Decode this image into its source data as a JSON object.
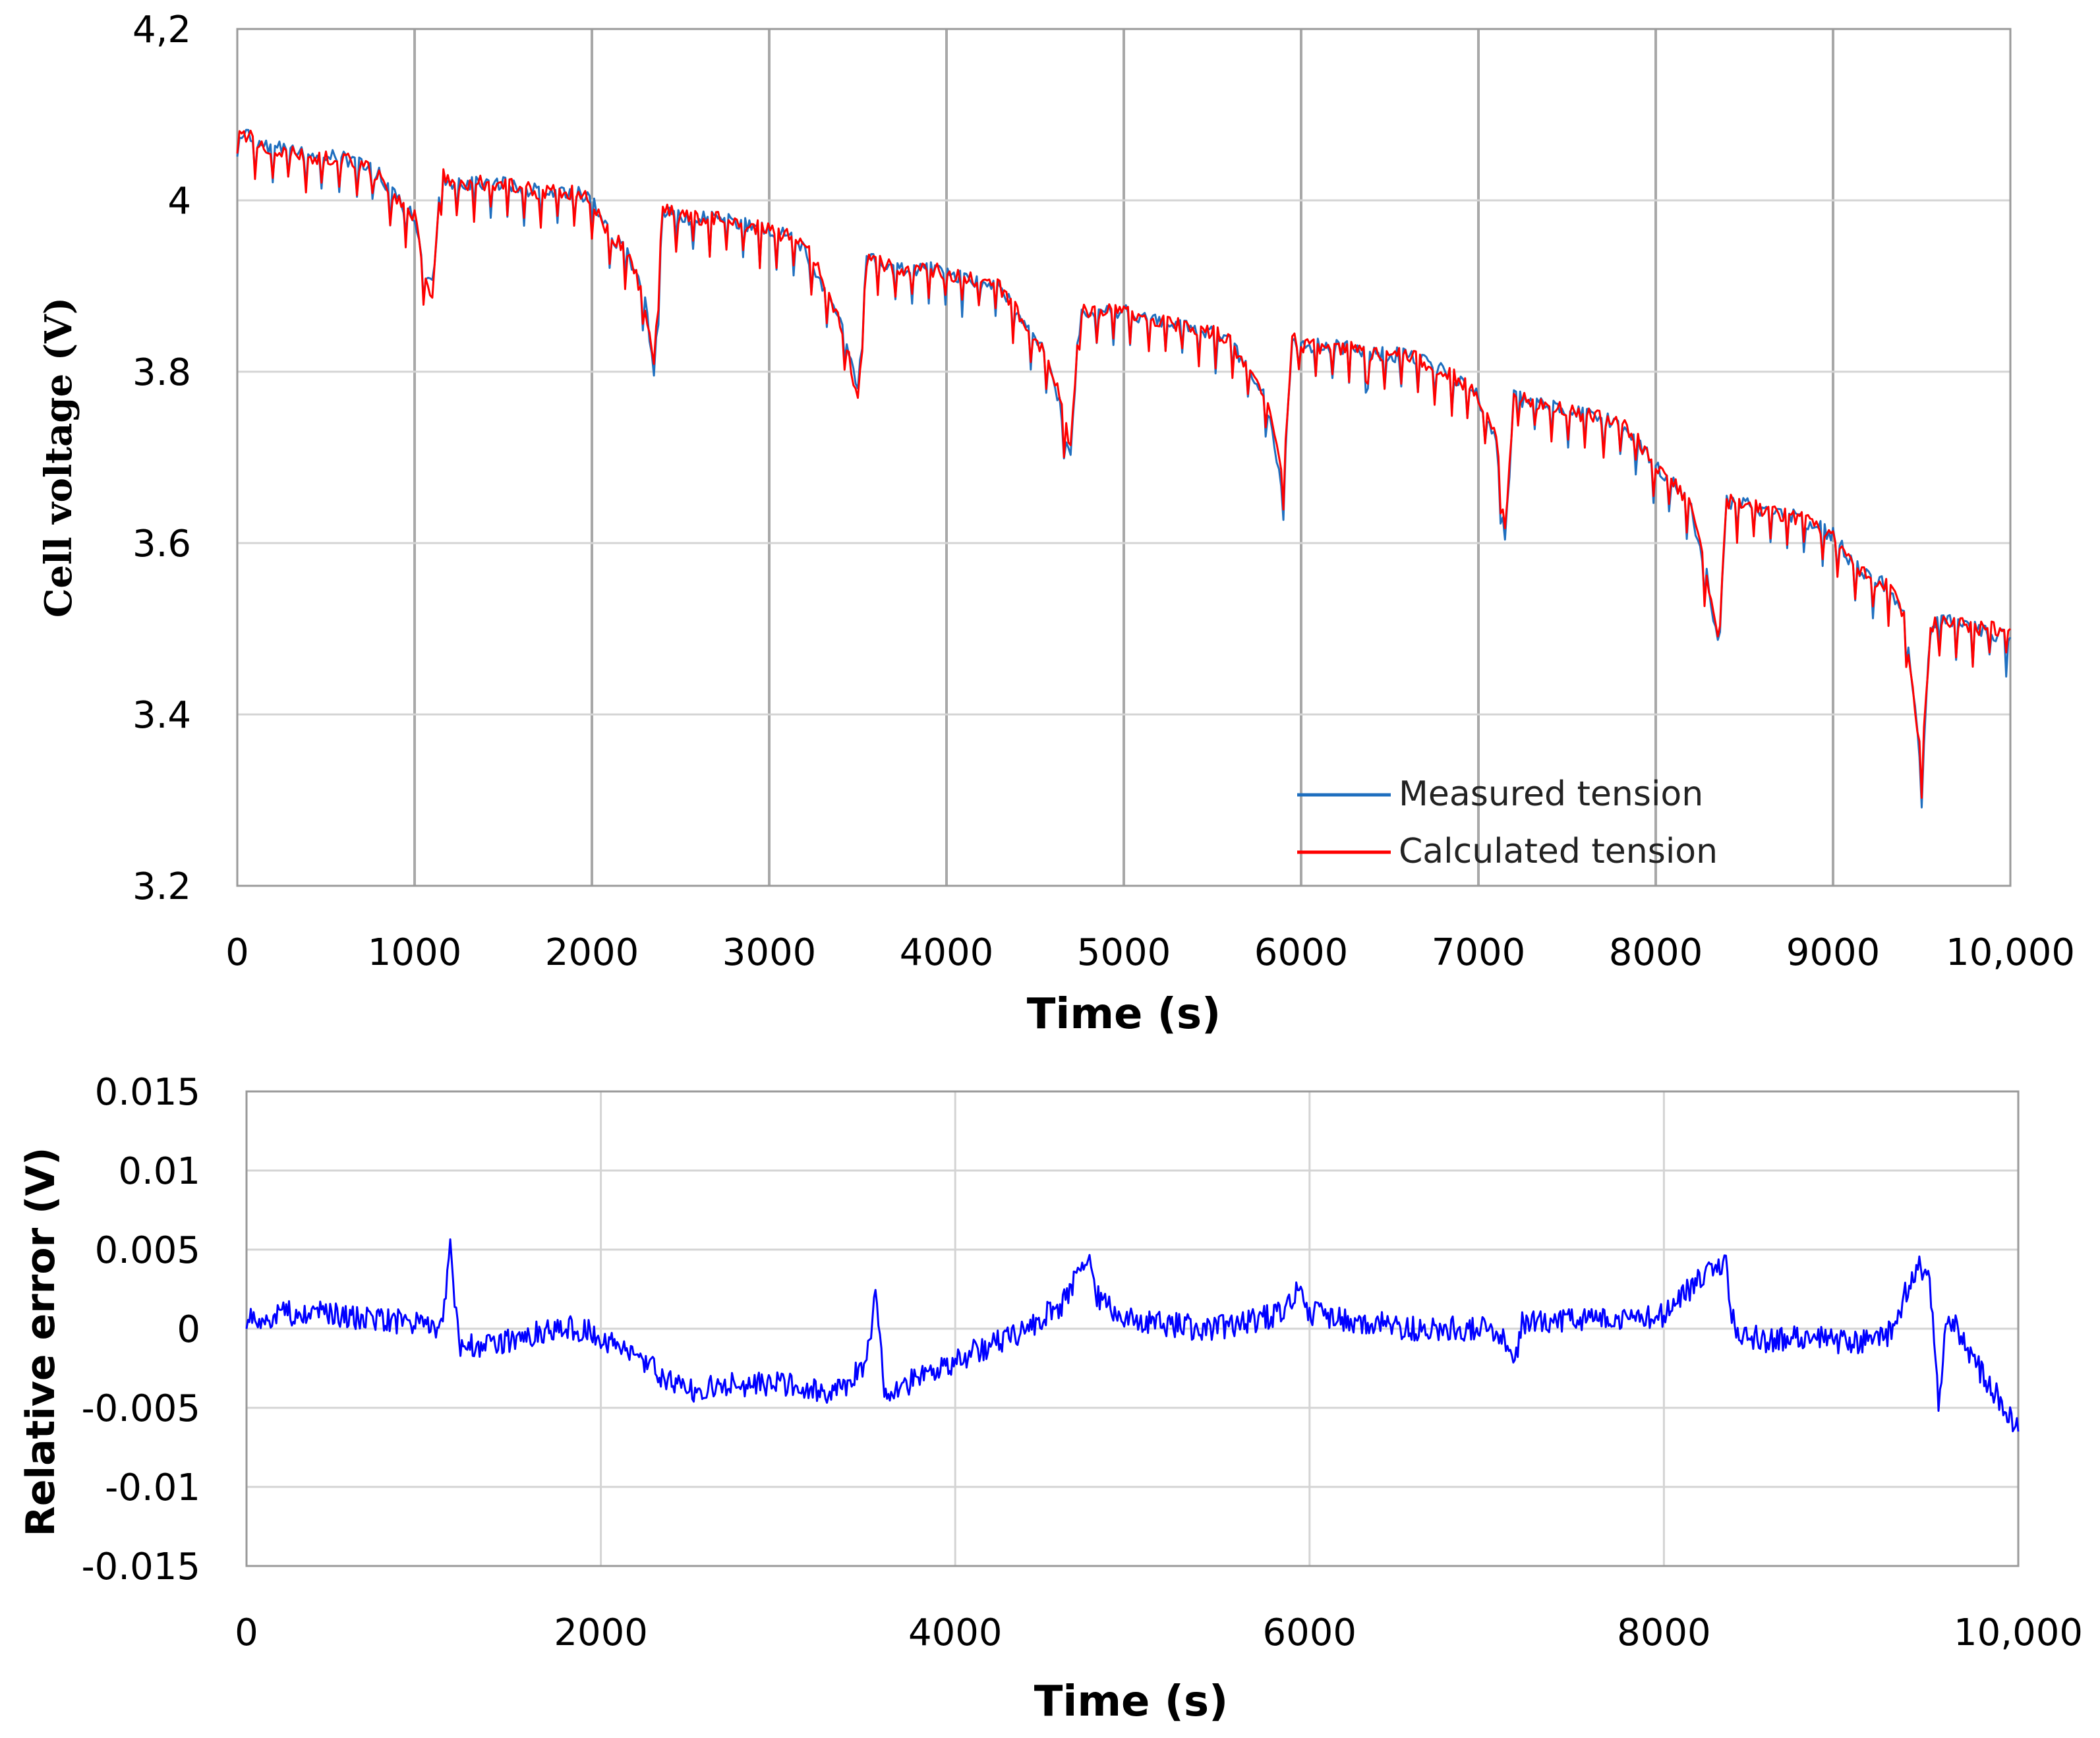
{
  "chart_data": [
    {
      "type": "line",
      "xlabel": "Time (s)",
      "ylabel": "Cell voltage  (V)",
      "xlim": [
        0,
        10000
      ],
      "ylim": [
        3.2,
        4.2
      ],
      "x_ticks": [
        0,
        1000,
        2000,
        3000,
        4000,
        5000,
        6000,
        7000,
        8000,
        9000,
        10000
      ],
      "x_tick_labels": [
        "0",
        "1000",
        "2000",
        "3000",
        "4000",
        "5000",
        "6000",
        "7000",
        "8000",
        "9000",
        "10,000"
      ],
      "y_ticks": [
        3.2,
        3.4,
        3.6,
        3.8,
        4.0,
        4.2
      ],
      "y_tick_labels": [
        "3.2",
        "3.4",
        "3.6",
        "3.8",
        "4",
        "4,2"
      ],
      "grid": true,
      "legend_position": "bottom-right",
      "series": [
        {
          "name": "Measured tension",
          "color": "#1f6fbf",
          "x": [
            0,
            100,
            200,
            300,
            400,
            500,
            600,
            700,
            800,
            900,
            1000,
            1050,
            1100,
            1150,
            1200,
            1300,
            1500,
            1700,
            1900,
            2000,
            2100,
            2200,
            2300,
            2350,
            2400,
            2500,
            2700,
            2900,
            3100,
            3200,
            3300,
            3400,
            3500,
            3550,
            3600,
            3700,
            3900,
            4100,
            4300,
            4400,
            4500,
            4600,
            4700,
            4750,
            4800,
            5000,
            5200,
            5400,
            5600,
            5700,
            5800,
            5900,
            5950,
            6000,
            6200,
            6400,
            6600,
            6800,
            6900,
            7000,
            7100,
            7150,
            7200,
            7400,
            7600,
            7800,
            7900,
            8000,
            8100,
            8200,
            8300,
            8350,
            8400,
            8600,
            8800,
            9000,
            9100,
            9200,
            9300,
            9400,
            9450,
            9500,
            9550,
            9600,
            9800,
            10000
          ],
          "y": [
            4.08,
            4.07,
            4.06,
            4.06,
            4.05,
            4.05,
            4.05,
            4.04,
            4.03,
            4.0,
            3.98,
            3.92,
            3.9,
            4.03,
            4.02,
            4.02,
            4.02,
            4.01,
            4.01,
            4.0,
            3.96,
            3.94,
            3.88,
            3.8,
            3.99,
            3.98,
            3.98,
            3.97,
            3.96,
            3.94,
            3.9,
            3.86,
            3.78,
            3.93,
            3.93,
            3.92,
            3.92,
            3.91,
            3.9,
            3.87,
            3.84,
            3.8,
            3.7,
            3.87,
            3.87,
            3.87,
            3.86,
            3.85,
            3.84,
            3.8,
            3.77,
            3.66,
            3.84,
            3.83,
            3.83,
            3.82,
            3.82,
            3.8,
            3.79,
            3.77,
            3.72,
            3.6,
            3.77,
            3.76,
            3.75,
            3.74,
            3.72,
            3.69,
            3.67,
            3.64,
            3.55,
            3.48,
            3.65,
            3.64,
            3.63,
            3.61,
            3.58,
            3.56,
            3.55,
            3.52,
            3.43,
            3.33,
            3.5,
            3.51,
            3.5,
            3.49
          ]
        },
        {
          "name": "Calculated tension",
          "color": "#ff0000",
          "x": [
            0,
            100,
            200,
            300,
            400,
            500,
            600,
            700,
            800,
            900,
            1000,
            1050,
            1100,
            1150,
            1200,
            1300,
            1500,
            1700,
            1900,
            2000,
            2100,
            2200,
            2300,
            2350,
            2400,
            2500,
            2700,
            2900,
            3100,
            3200,
            3300,
            3400,
            3500,
            3550,
            3600,
            3700,
            3900,
            4100,
            4300,
            4400,
            4500,
            4600,
            4700,
            4750,
            4800,
            5000,
            5200,
            5400,
            5600,
            5700,
            5800,
            5900,
            5950,
            6000,
            6200,
            6400,
            6600,
            6800,
            6900,
            7000,
            7100,
            7150,
            7200,
            7400,
            7600,
            7800,
            7900,
            8000,
            8100,
            8200,
            8300,
            8350,
            8400,
            8600,
            8800,
            9000,
            9100,
            9200,
            9300,
            9400,
            9450,
            9500,
            9550,
            9600,
            9800,
            10000
          ],
          "y": [
            4.08,
            4.07,
            4.06,
            4.06,
            4.05,
            4.05,
            4.05,
            4.04,
            4.03,
            4.0,
            3.98,
            3.92,
            3.89,
            4.03,
            4.02,
            4.02,
            4.02,
            4.01,
            4.01,
            4.0,
            3.96,
            3.94,
            3.88,
            3.81,
            3.99,
            3.98,
            3.98,
            3.97,
            3.96,
            3.95,
            3.91,
            3.86,
            3.77,
            3.93,
            3.93,
            3.92,
            3.92,
            3.91,
            3.9,
            3.87,
            3.84,
            3.8,
            3.71,
            3.87,
            3.87,
            3.87,
            3.86,
            3.85,
            3.84,
            3.8,
            3.77,
            3.67,
            3.84,
            3.83,
            3.83,
            3.82,
            3.82,
            3.8,
            3.79,
            3.77,
            3.72,
            3.61,
            3.77,
            3.76,
            3.75,
            3.74,
            3.72,
            3.69,
            3.67,
            3.64,
            3.55,
            3.49,
            3.65,
            3.64,
            3.63,
            3.61,
            3.58,
            3.56,
            3.55,
            3.52,
            3.43,
            3.34,
            3.5,
            3.51,
            3.5,
            3.5
          ]
        }
      ]
    },
    {
      "type": "line",
      "xlabel": "Time (s)",
      "ylabel": "Relative error (V)",
      "xlim": [
        0,
        10000
      ],
      "ylim": [
        -0.015,
        0.015
      ],
      "x_ticks": [
        0,
        2000,
        4000,
        6000,
        8000,
        10000
      ],
      "x_tick_labels": [
        "0",
        "2000",
        "4000",
        "6000",
        "8000",
        "10,000"
      ],
      "y_ticks": [
        -0.015,
        -0.01,
        -0.005,
        0,
        0.005,
        0.01,
        0.015
      ],
      "y_tick_labels": [
        "-0.015",
        "-0.01",
        "-0.005",
        "0",
        "0.005",
        "0.01",
        "0.015"
      ],
      "grid": true,
      "series": [
        {
          "name": "Relative error",
          "color": "#0000ff",
          "x": [
            0,
            200,
            400,
            600,
            800,
            1000,
            1100,
            1150,
            1200,
            1300,
            1500,
            1700,
            1900,
            2000,
            2100,
            2200,
            2300,
            2400,
            2500,
            2700,
            2900,
            3100,
            3300,
            3400,
            3500,
            3550,
            3600,
            3700,
            3800,
            3900,
            4000,
            4200,
            4400,
            4600,
            4700,
            4750,
            4800,
            4900,
            5000,
            5200,
            5400,
            5600,
            5800,
            5900,
            5950,
            6000,
            6200,
            6400,
            6600,
            6800,
            7000,
            7100,
            7150,
            7200,
            7400,
            7600,
            7800,
            8000,
            8100,
            8200,
            8300,
            8350,
            8400,
            8600,
            8800,
            9000,
            9200,
            9300,
            9400,
            9450,
            9500,
            9550,
            9600,
            9700,
            9800,
            9900,
            10000
          ],
          "y": [
            0.0005,
            0.001,
            0.001,
            0.0008,
            0.0005,
            0.0005,
            0.0,
            0.005,
            -0.001,
            -0.0012,
            -0.0008,
            0.0,
            0.0,
            -0.0005,
            -0.0012,
            -0.002,
            -0.0025,
            -0.0035,
            -0.004,
            -0.0035,
            -0.0035,
            -0.0035,
            -0.004,
            -0.0035,
            -0.002,
            0.002,
            -0.004,
            -0.0038,
            -0.003,
            -0.0028,
            -0.002,
            -0.001,
            0.0,
            0.0015,
            0.0035,
            0.005,
            0.002,
            0.001,
            0.0005,
            0.0003,
            0.0,
            0.0003,
            0.0008,
            0.0015,
            0.003,
            0.001,
            0.0006,
            0.0003,
            0.0,
            0.0,
            0.0,
            -0.0005,
            -0.0025,
            0.0003,
            0.0005,
            0.0005,
            0.0006,
            0.0008,
            0.002,
            0.003,
            0.004,
            0.004,
            -0.0003,
            -0.0008,
            -0.0005,
            -0.0008,
            -0.0008,
            0.0,
            0.0035,
            0.004,
            0.003,
            -0.0045,
            0.001,
            -0.001,
            -0.003,
            -0.0045,
            -0.0065
          ]
        }
      ]
    }
  ]
}
